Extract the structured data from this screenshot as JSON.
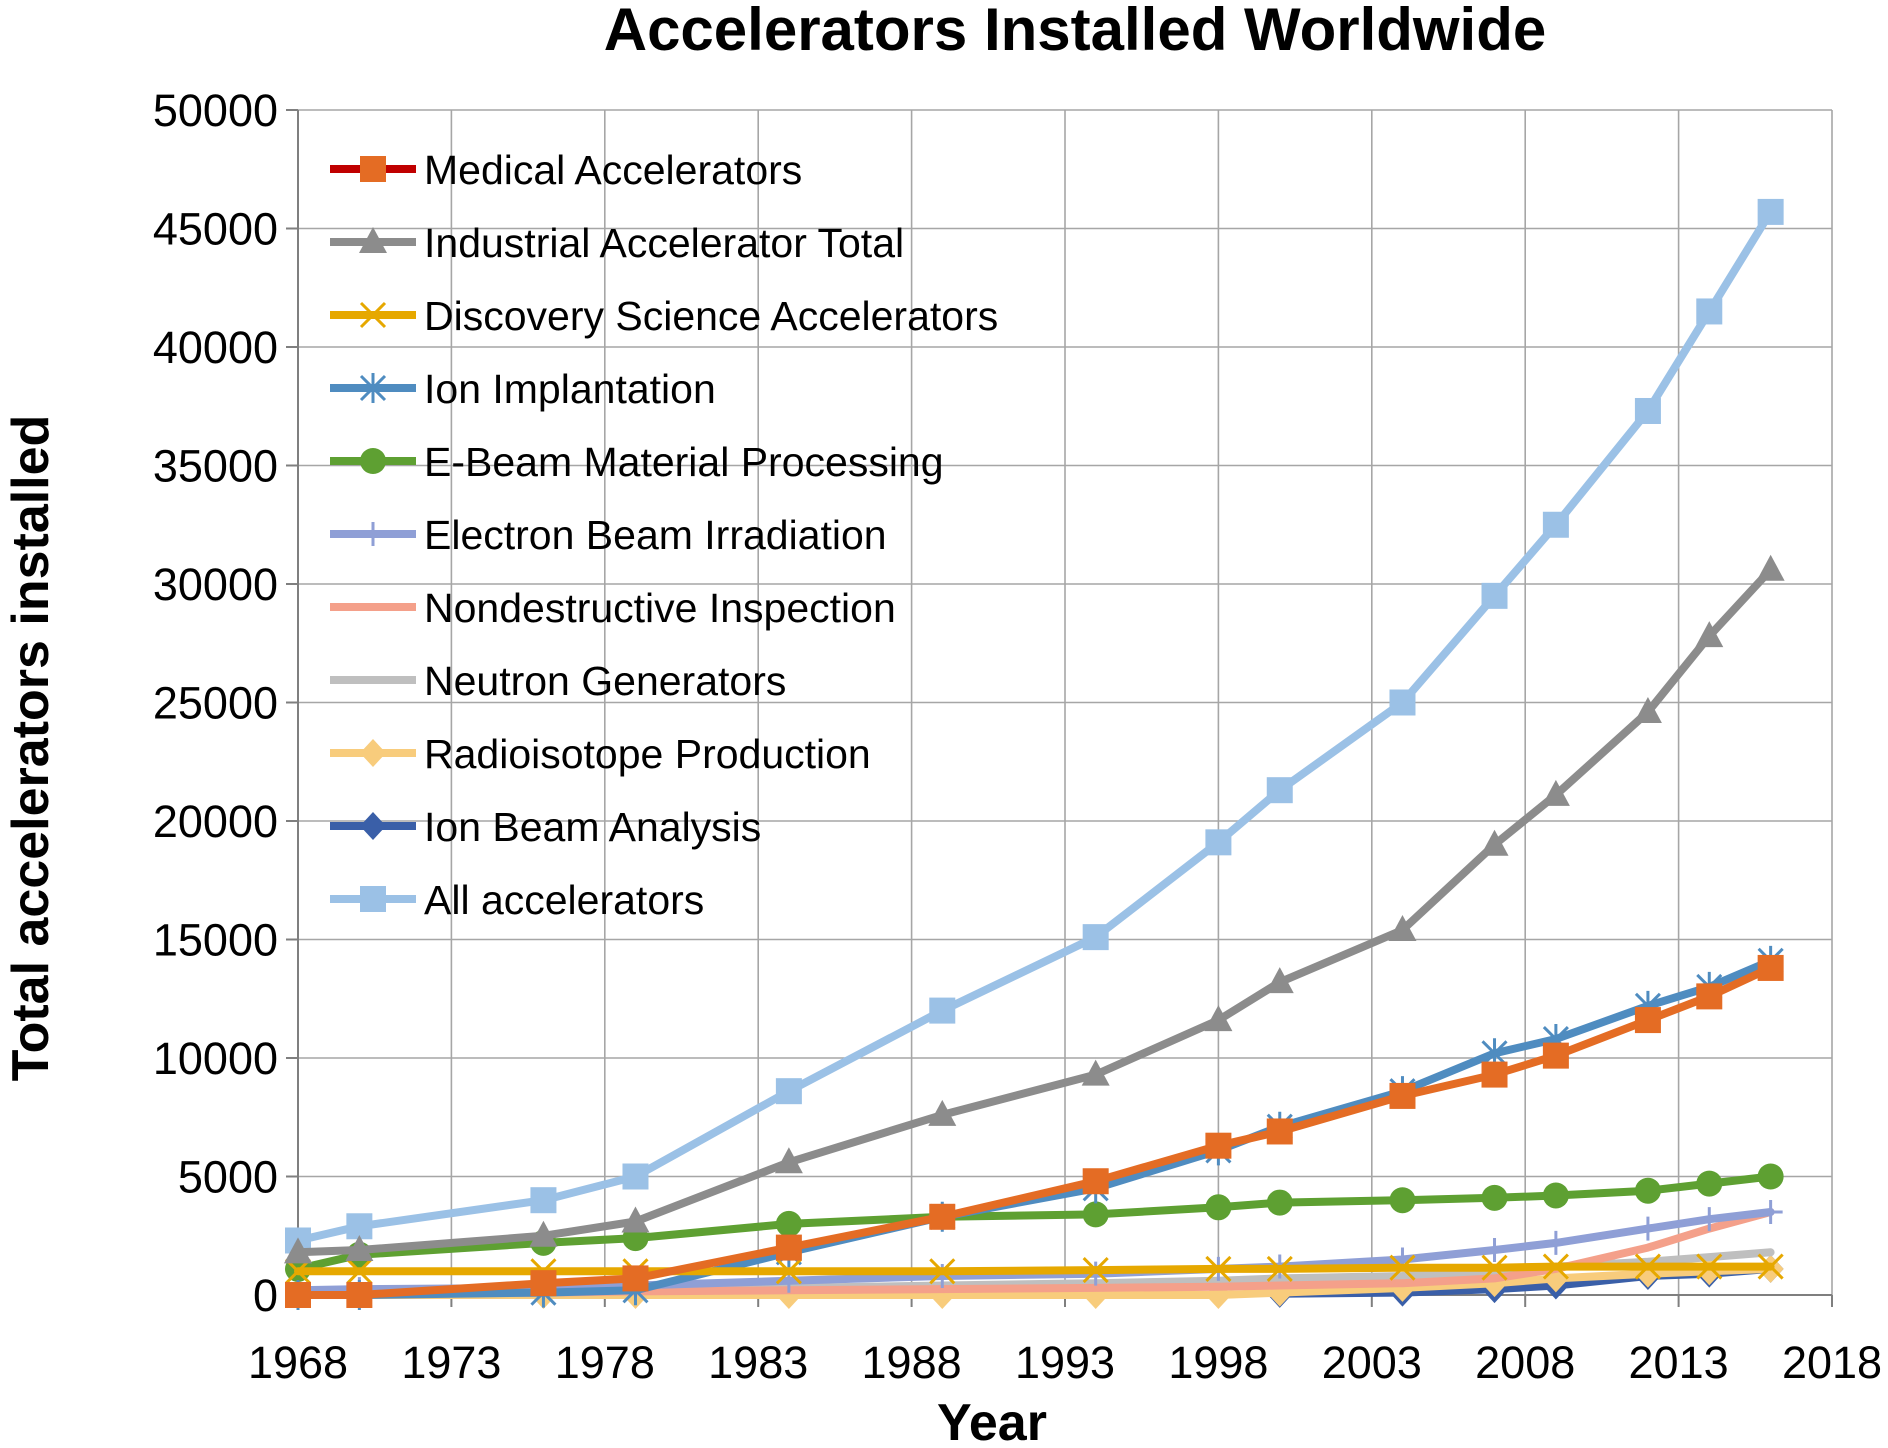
{
  "chart_data": {
    "type": "line",
    "title": "Accelerators Installed Worldwide",
    "xlabel": "Year",
    "ylabel": "Total accelerators installed",
    "xlim": [
      1968,
      2018
    ],
    "ylim": [
      0,
      50000
    ],
    "x_ticks": [
      "1968",
      "1973",
      "1978",
      "1983",
      "1988",
      "1993",
      "1998",
      "2003",
      "2008",
      "2013",
      "2018"
    ],
    "y_ticks": [
      "0",
      "5000",
      "10000",
      "15000",
      "20000",
      "25000",
      "30000",
      "35000",
      "40000",
      "45000",
      "50000"
    ],
    "grid": true,
    "legend_position": "top-left",
    "series": [
      {
        "name": "Medical Accelerators",
        "color": "#e46c24",
        "line_color": "#c00000",
        "marker": "square",
        "points": [
          [
            1968,
            0
          ],
          [
            1970,
            0
          ],
          [
            1976,
            500
          ],
          [
            1979,
            700
          ],
          [
            1984,
            2000
          ],
          [
            1989,
            3300
          ],
          [
            1994,
            4800
          ],
          [
            1998,
            6300
          ],
          [
            2000,
            6900
          ],
          [
            2004,
            8400
          ],
          [
            2007,
            9300
          ],
          [
            2009,
            10100
          ],
          [
            2012,
            11600
          ],
          [
            2014,
            12600
          ],
          [
            2016,
            13800
          ]
        ]
      },
      {
        "name": "Industrial Accelerator Total",
        "color": "#8c8c8c",
        "marker": "triangle",
        "points": [
          [
            1968,
            1800
          ],
          [
            1970,
            1900
          ],
          [
            1976,
            2500
          ],
          [
            1979,
            3100
          ],
          [
            1984,
            5600
          ],
          [
            1989,
            7600
          ],
          [
            1994,
            9300
          ],
          [
            1998,
            11600
          ],
          [
            2000,
            13200
          ],
          [
            2004,
            15400
          ],
          [
            2007,
            19000
          ],
          [
            2009,
            21100
          ],
          [
            2012,
            24600
          ],
          [
            2014,
            27800
          ],
          [
            2016,
            30600
          ]
        ]
      },
      {
        "name": "Discovery Science Accelerators",
        "color": "#e6a800",
        "marker": "x",
        "points": [
          [
            1968,
            1000
          ],
          [
            1970,
            1000
          ],
          [
            1976,
            1000
          ],
          [
            1979,
            1000
          ],
          [
            1984,
            1000
          ],
          [
            1989,
            1000
          ],
          [
            1994,
            1050
          ],
          [
            1998,
            1100
          ],
          [
            2000,
            1100
          ],
          [
            2004,
            1150
          ],
          [
            2007,
            1150
          ],
          [
            2009,
            1200
          ],
          [
            2012,
            1200
          ],
          [
            2014,
            1200
          ],
          [
            2016,
            1200
          ]
        ]
      },
      {
        "name": "Ion Implantation",
        "color": "#4f8cc0",
        "marker": "star",
        "points": [
          [
            1968,
            0
          ],
          [
            1970,
            0
          ],
          [
            1976,
            100
          ],
          [
            1979,
            200
          ],
          [
            1984,
            1800
          ],
          [
            1989,
            3300
          ],
          [
            1994,
            4500
          ],
          [
            1998,
            6100
          ],
          [
            2000,
            7100
          ],
          [
            2004,
            8600
          ],
          [
            2007,
            10200
          ],
          [
            2009,
            10800
          ],
          [
            2012,
            12200
          ],
          [
            2014,
            13000
          ],
          [
            2016,
            14100
          ]
        ]
      },
      {
        "name": "E-Beam Material Processing",
        "color": "#5ea032",
        "marker": "circle",
        "points": [
          [
            1968,
            1100
          ],
          [
            1970,
            1700
          ],
          [
            1976,
            2200
          ],
          [
            1979,
            2400
          ],
          [
            1984,
            3000
          ],
          [
            1989,
            3300
          ],
          [
            1994,
            3400
          ],
          [
            1998,
            3700
          ],
          [
            2000,
            3900
          ],
          [
            2004,
            4000
          ],
          [
            2007,
            4100
          ],
          [
            2009,
            4200
          ],
          [
            2012,
            4400
          ],
          [
            2014,
            4700
          ],
          [
            2016,
            5000
          ]
        ]
      },
      {
        "name": "Electron Beam Irradiation",
        "color": "#8f9fd6",
        "marker": "plus",
        "points": [
          [
            1968,
            200
          ],
          [
            1970,
            250
          ],
          [
            1976,
            300
          ],
          [
            1979,
            400
          ],
          [
            1984,
            600
          ],
          [
            1989,
            800
          ],
          [
            1994,
            900
          ],
          [
            1998,
            1100
          ],
          [
            2000,
            1200
          ],
          [
            2004,
            1500
          ],
          [
            2007,
            1900
          ],
          [
            2009,
            2200
          ],
          [
            2012,
            2800
          ],
          [
            2014,
            3200
          ],
          [
            2016,
            3500
          ]
        ]
      },
      {
        "name": "Nondestructive Inspection",
        "color": "#f4a08a",
        "marker": "none",
        "points": [
          [
            1968,
            0
          ],
          [
            1970,
            50
          ],
          [
            1976,
            100
          ],
          [
            1979,
            150
          ],
          [
            1984,
            200
          ],
          [
            1989,
            250
          ],
          [
            1994,
            300
          ],
          [
            1998,
            350
          ],
          [
            2000,
            400
          ],
          [
            2004,
            500
          ],
          [
            2007,
            700
          ],
          [
            2009,
            1100
          ],
          [
            2012,
            2000
          ],
          [
            2014,
            2800
          ],
          [
            2016,
            3500
          ]
        ]
      },
      {
        "name": "Neutron Generators",
        "color": "#bfbfbf",
        "marker": "none",
        "points": [
          [
            1968,
            100
          ],
          [
            1970,
            100
          ],
          [
            1976,
            150
          ],
          [
            1979,
            200
          ],
          [
            1984,
            300
          ],
          [
            1989,
            400
          ],
          [
            1994,
            500
          ],
          [
            1998,
            600
          ],
          [
            2000,
            700
          ],
          [
            2004,
            800
          ],
          [
            2007,
            1000
          ],
          [
            2009,
            1200
          ],
          [
            2012,
            1400
          ],
          [
            2014,
            1600
          ],
          [
            2016,
            1800
          ]
        ]
      },
      {
        "name": "Radioisotope Production",
        "color": "#f8cc7c",
        "marker": "diamond",
        "points": [
          [
            1968,
            0
          ],
          [
            1970,
            0
          ],
          [
            1976,
            0
          ],
          [
            1979,
            0
          ],
          [
            1984,
            0
          ],
          [
            1989,
            0
          ],
          [
            1994,
            0
          ],
          [
            1998,
            0
          ],
          [
            2000,
            100
          ],
          [
            2004,
            300
          ],
          [
            2007,
            500
          ],
          [
            2009,
            700
          ],
          [
            2012,
            900
          ],
          [
            2014,
            1000
          ],
          [
            2016,
            1100
          ]
        ]
      },
      {
        "name": "Ion Beam Analysis",
        "color": "#3a5fa8",
        "marker": "diamond",
        "points": [
          [
            2000,
            50
          ],
          [
            2004,
            100
          ],
          [
            2007,
            250
          ],
          [
            2009,
            400
          ],
          [
            2012,
            800
          ],
          [
            2014,
            900
          ],
          [
            2016,
            1100
          ]
        ]
      },
      {
        "name": "All accelerators",
        "color": "#9bc1e6",
        "marker": "square",
        "points": [
          [
            1968,
            2300
          ],
          [
            1970,
            2900
          ],
          [
            1976,
            4000
          ],
          [
            1979,
            5000
          ],
          [
            1984,
            8600
          ],
          [
            1989,
            12000
          ],
          [
            1994,
            15100
          ],
          [
            1998,
            19100
          ],
          [
            2000,
            21300
          ],
          [
            2004,
            25000
          ],
          [
            2007,
            29500
          ],
          [
            2009,
            32500
          ],
          [
            2012,
            37300
          ],
          [
            2014,
            41500
          ],
          [
            2016,
            45700
          ]
        ]
      }
    ]
  }
}
